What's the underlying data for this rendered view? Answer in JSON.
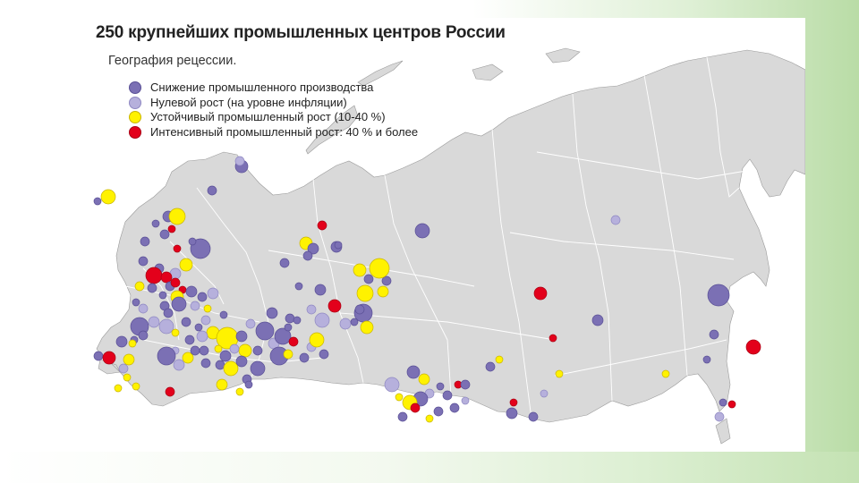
{
  "slide": {
    "title": "250 крупнейших промышленных центров России",
    "subtitle": "География рецессии."
  },
  "legend": {
    "items": [
      {
        "label": "Снижение промышленного производства",
        "category": "decline"
      },
      {
        "label": "Нулевой рост (на уровне инфляции)",
        "category": "zero"
      },
      {
        "label": "Устойчивый промышленный рост (10-40 %)",
        "category": "steady"
      },
      {
        "label": "Интенсивный промышленный рост: 40 % и более",
        "category": "intense"
      }
    ]
  },
  "colors": {
    "decline": "#7b70b4",
    "zero": "#b6b0dc",
    "steady": "#fff200",
    "intense": "#e3001b",
    "land": "#d9d9d9",
    "border": "#ffffff",
    "outline": "#9a9a9a"
  }
}
